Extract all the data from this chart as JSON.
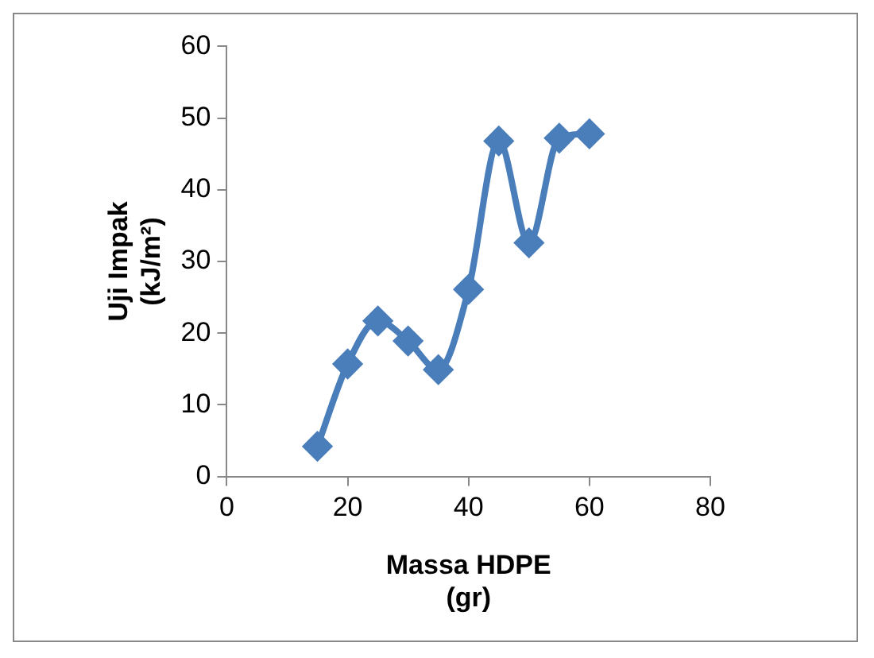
{
  "chart_data": {
    "type": "line",
    "xlabel": "Massa HDPE (gr)",
    "ylabel": "Uji Impak (kJ/m²)",
    "x": [
      15,
      20,
      25,
      30,
      35,
      40,
      45,
      50,
      55,
      60
    ],
    "series": [
      {
        "color": "#4a7ebb",
        "values": [
          4.2,
          15.7,
          21.7,
          18.9,
          14.9,
          26.1,
          46.8,
          32.6,
          47.2,
          47.8
        ]
      }
    ],
    "xlim": [
      0,
      80
    ],
    "xticks": [
      0,
      20,
      40,
      60,
      80
    ],
    "ylim": [
      0,
      60
    ],
    "yticks": [
      0,
      10,
      20,
      30,
      40,
      50,
      60
    ],
    "grid": false,
    "legend": false,
    "marker": "diamond",
    "line_style": "solid"
  }
}
